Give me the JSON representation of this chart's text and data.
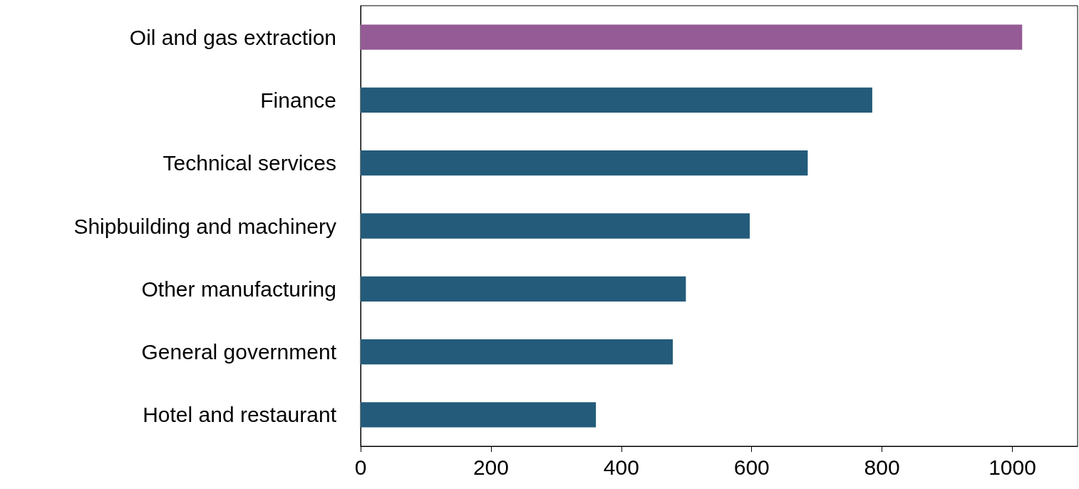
{
  "chart_data": {
    "type": "bar",
    "orientation": "horizontal",
    "categories": [
      "Oil and gas extraction",
      "Finance",
      "Technical services",
      "Shipbuilding and machinery",
      "Other manufacturing",
      "General government",
      "Hotel and restaurant"
    ],
    "values": [
      1015,
      785,
      686,
      597,
      499,
      479,
      361
    ],
    "colors": [
      "#955b96",
      "#245b7a",
      "#245b7a",
      "#245b7a",
      "#245b7a",
      "#245b7a",
      "#245b7a"
    ],
    "xlim": [
      0,
      1100
    ],
    "xticks": [
      0,
      200,
      400,
      600,
      800,
      1000
    ],
    "grid": false
  }
}
